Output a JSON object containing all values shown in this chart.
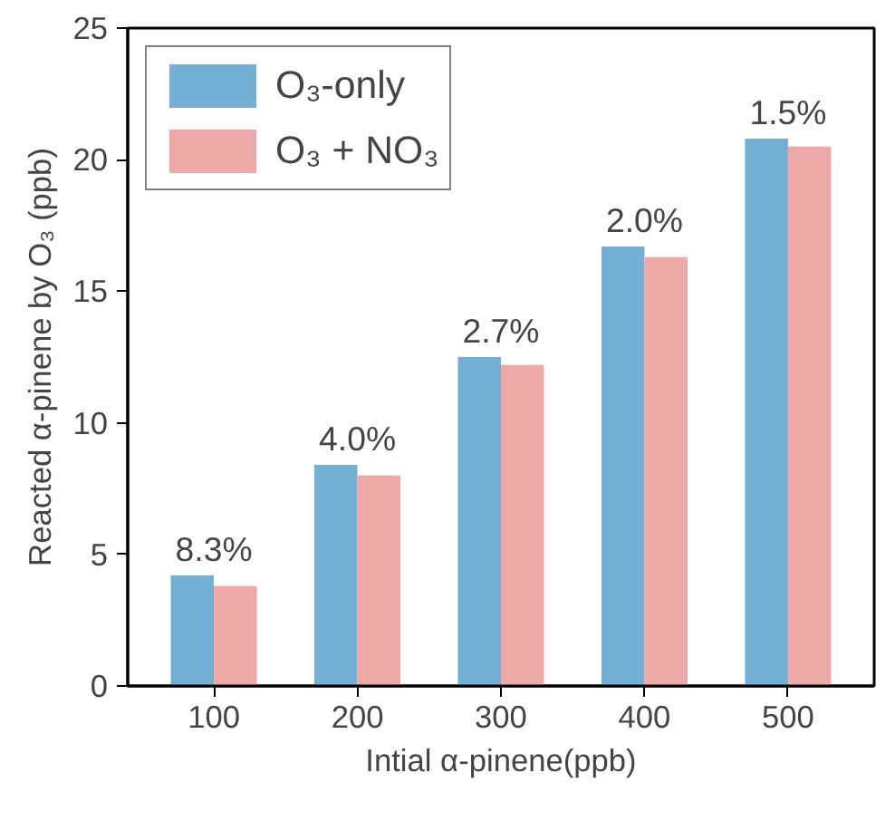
{
  "chart_data": {
    "type": "bar",
    "xlabel": "Intial α-pinene(ppb)",
    "ylabel": "Reacted α-pinene by O₃ (ppb)",
    "categories": [
      "100",
      "200",
      "300",
      "400",
      "500"
    ],
    "series": [
      {
        "name": "O₃-only",
        "color": "#74afd4",
        "values": [
          4.2,
          8.4,
          12.5,
          16.7,
          20.8
        ]
      },
      {
        "name": "O₃ + NO₃",
        "color": "#eda9a8",
        "values": [
          3.8,
          8.0,
          12.2,
          16.3,
          20.5
        ]
      }
    ],
    "ylim": [
      0,
      25
    ],
    "yticks": [
      0,
      5,
      10,
      15,
      20,
      25
    ],
    "grid": false,
    "legend": "top left",
    "annotations": [
      {
        "text": "8.3%",
        "x": "100",
        "y": 4.2
      },
      {
        "text": "4.0%",
        "x": "200",
        "y": 8.4
      },
      {
        "text": "2.7%",
        "x": "300",
        "y": 12.5
      },
      {
        "text": "2.0%",
        "x": "400",
        "y": 16.7
      },
      {
        "text": "1.5%",
        "x": "500",
        "y": 20.8
      }
    ]
  }
}
